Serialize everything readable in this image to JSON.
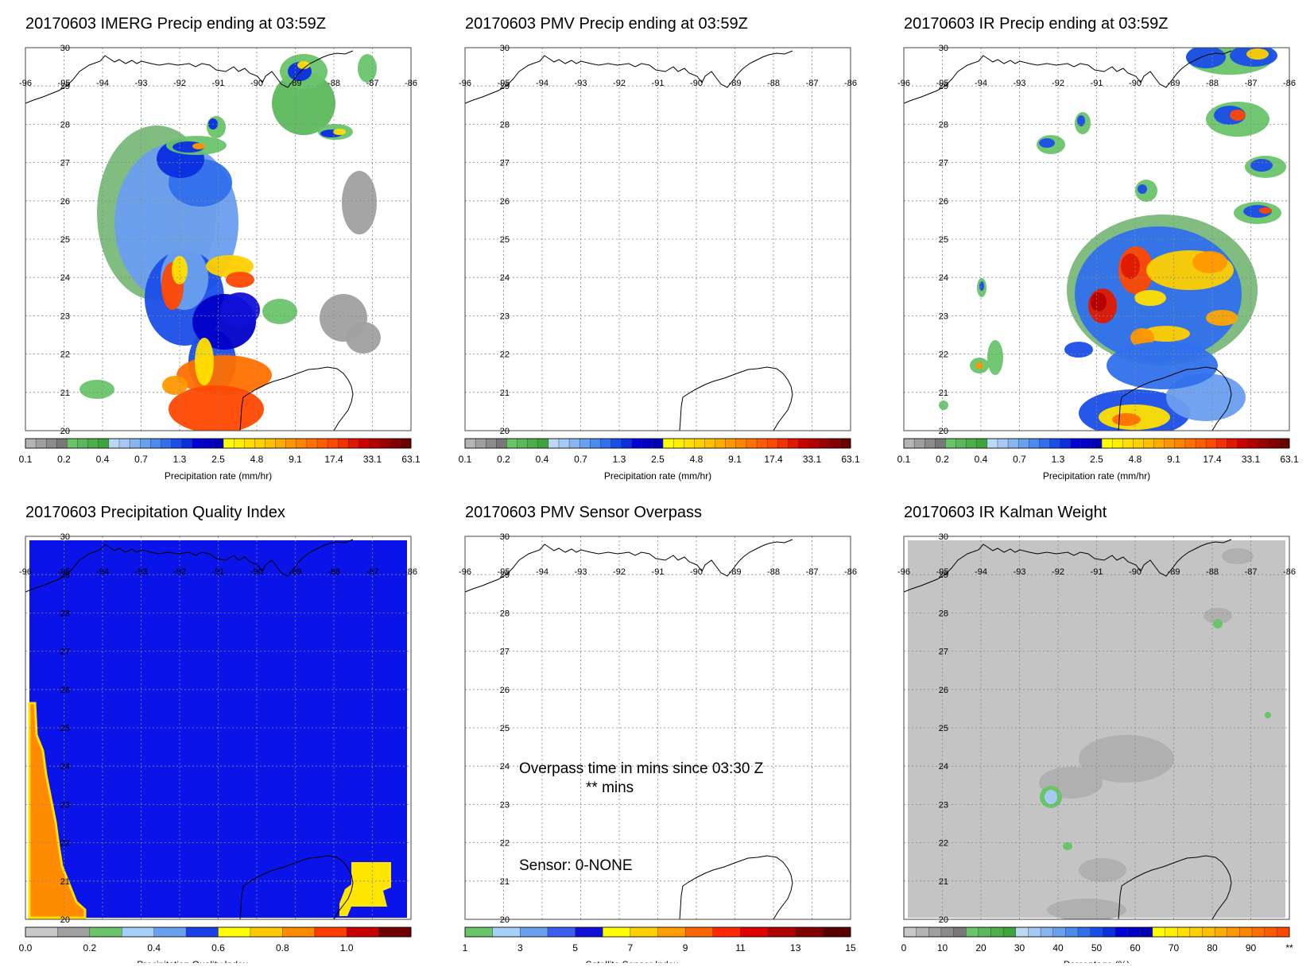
{
  "panels": [
    {
      "id": "imerg",
      "title": "20170603 IMERG Precip ending at 03:59Z",
      "colorbar": "precip",
      "cb_label": "Precipitation rate (mm/hr)",
      "variant": "imerg"
    },
    {
      "id": "pmv",
      "title": "20170603 PMV Precip ending at 03:59Z",
      "colorbar": "precip",
      "cb_label": "Precipitation rate (mm/hr)",
      "variant": "empty"
    },
    {
      "id": "ir",
      "title": "20170603 IR Precip ending at 03:59Z",
      "colorbar": "precip",
      "cb_label": "Precipitation rate (mm/hr)",
      "variant": "ir"
    },
    {
      "id": "pqi",
      "title": "20170603 Precipitation Quality Index",
      "colorbar": "pqi",
      "cb_label": "Precipitation Quality Index",
      "variant": "pqi"
    },
    {
      "id": "overpass",
      "title": "20170603 PMV Sensor Overpass",
      "colorbar": "sensor",
      "cb_label": "Satellite Sensor Index",
      "variant": "overpass",
      "text1": "Overpass time in mins since 03:30 Z",
      "text2": "** mins",
      "text3": "Sensor:   0-NONE"
    },
    {
      "id": "kalman",
      "title": "20170603 IR Kalman Weight",
      "colorbar": "percent",
      "cb_label": "Percentage (%)",
      "variant": "kalman"
    }
  ],
  "map": {
    "lon_labels": [
      "-96",
      "-95",
      "-94",
      "-93",
      "-92",
      "-91",
      "-90",
      "-89",
      "-88",
      "-87",
      "-86"
    ],
    "lat_labels": [
      "30",
      "29",
      "28",
      "27",
      "26",
      "25",
      "24",
      "23",
      "22",
      "21",
      "20"
    ]
  },
  "colorbars": {
    "precip": {
      "colors": [
        "#b4b4b4",
        "#a0a0a0",
        "#8c8c8c",
        "#787878",
        "#6ac46a",
        "#5cb85c",
        "#4cae4c",
        "#3ea43e",
        "#bcd8f4",
        "#a6c8f2",
        "#88b4f0",
        "#6aa0ee",
        "#4c8aee",
        "#3070ec",
        "#1a4ee8",
        "#0a2ee0",
        "#0000d8",
        "#0000c8",
        "#0000b4",
        "#ffff00",
        "#fff000",
        "#ffe000",
        "#ffd000",
        "#ffc000",
        "#ffac00",
        "#ff9800",
        "#ff8400",
        "#ff7000",
        "#ff5c00",
        "#ff4800",
        "#f23000",
        "#e01800",
        "#cc0000",
        "#b40000",
        "#9c0000",
        "#840000",
        "#6a0000"
      ],
      "ticks": [
        "0.1",
        "0.2",
        "0.4",
        "0.7",
        "1.3",
        "2.5",
        "4.8",
        "9.1",
        "17.4",
        "33.1",
        "63.1"
      ]
    },
    "pqi": {
      "colors": [
        "#c8c8c8",
        "#a0a0a0",
        "#6ac46a",
        "#a6d0f8",
        "#6aa0f0",
        "#1a3ee8",
        "#ffff00",
        "#ffc800",
        "#ff8c00",
        "#ff3c00",
        "#c80000",
        "#700000"
      ],
      "ticks": [
        "0.0",
        "0.2",
        "0.4",
        "0.6",
        "0.8",
        "1.0"
      ]
    },
    "sensor": {
      "colors": [
        "#6ac46a",
        "#a6d0f8",
        "#6aa0f0",
        "#3a5ef0",
        "#1010d8",
        "#ffff00",
        "#ffd000",
        "#ff9c00",
        "#ff6400",
        "#ff2800",
        "#e00000",
        "#b00000",
        "#800000",
        "#5a0000"
      ],
      "ticks": [
        "1",
        "3",
        "5",
        "7",
        "9",
        "11",
        "13",
        "15"
      ]
    },
    "percent": {
      "colors": [
        "#c8c8c8",
        "#b4b4b4",
        "#a0a0a0",
        "#8c8c8c",
        "#787878",
        "#6ac46a",
        "#5cb85c",
        "#4cae4c",
        "#3ea43e",
        "#bcd8f4",
        "#a6c8f2",
        "#88b4f0",
        "#6aa0ee",
        "#4c8aee",
        "#3070ec",
        "#1a4ee8",
        "#0a2ee0",
        "#0000d8",
        "#0000c8",
        "#0000b4",
        "#ffff00",
        "#fff000",
        "#ffe000",
        "#ffd000",
        "#ffc000",
        "#ffac00",
        "#ff9800",
        "#ff8400",
        "#ff7000",
        "#ff5c00",
        "#ff4800"
      ],
      "ticks": [
        "0",
        "10",
        "20",
        "30",
        "40",
        "50",
        "60",
        "70",
        "80",
        "90",
        "**"
      ]
    }
  }
}
